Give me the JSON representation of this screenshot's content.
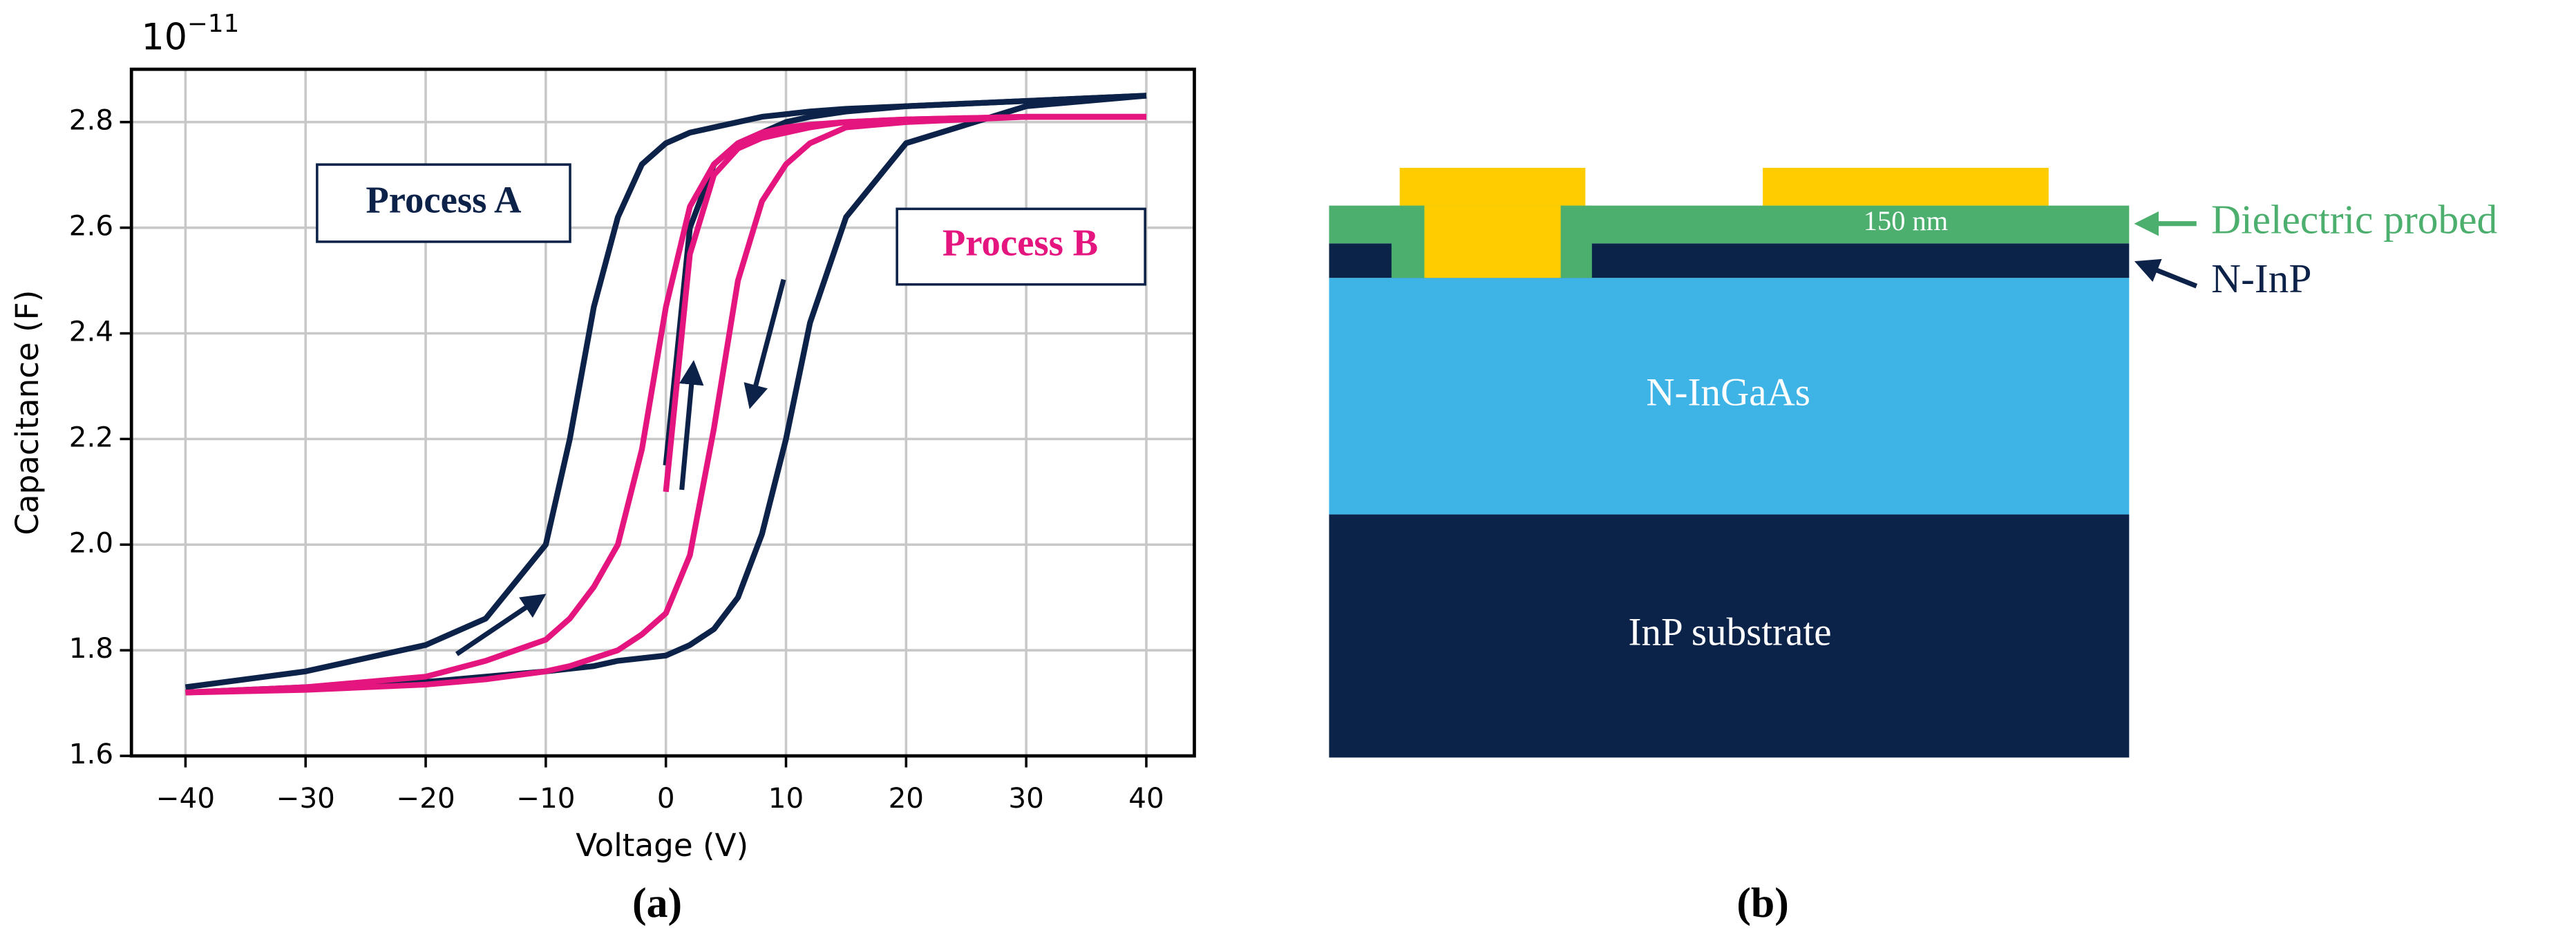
{
  "chart_data": {
    "type": "line",
    "x_label": "Voltage (V)",
    "y_label": "Capacitance (F)",
    "y_offset": {
      "base": "10",
      "exponent": "−11"
    },
    "x": [
      -40,
      -30,
      -20,
      -15,
      -10,
      -8,
      -6,
      -4,
      -2,
      0,
      2,
      4,
      6,
      8,
      10,
      12,
      15,
      20,
      30,
      40
    ],
    "xlim": [
      -44.5,
      44
    ],
    "ylim": [
      1.6,
      2.9
    ],
    "xticks": [
      {
        "value": -40,
        "label": "−40"
      },
      {
        "value": -30,
        "label": "−30"
      },
      {
        "value": -20,
        "label": "−20"
      },
      {
        "value": -10,
        "label": "−10"
      },
      0,
      10,
      20,
      30,
      40
    ],
    "yticks": [
      1.6,
      1.8,
      {
        "value": 2,
        "label": "2.0"
      },
      2.2,
      2.4,
      2.6,
      2.8
    ],
    "grid": true,
    "series": [
      {
        "name": "Process A",
        "color": "#0d2249",
        "sweeps": [
          [
            1.73,
            1.76,
            1.81,
            1.86,
            2.0,
            2.2,
            2.45,
            2.62,
            2.72,
            2.76,
            2.78,
            2.79,
            2.8,
            2.81,
            2.815,
            2.82,
            2.825,
            2.83,
            2.84,
            2.85
          ],
          [
            1.72,
            1.73,
            1.74,
            1.75,
            1.76,
            1.765,
            1.77,
            1.78,
            1.785,
            1.79,
            1.81,
            1.84,
            1.9,
            2.02,
            2.2,
            2.42,
            2.62,
            2.76,
            2.83,
            2.85
          ],
          [
            null,
            null,
            null,
            null,
            null,
            null,
            null,
            null,
            null,
            2.15,
            2.6,
            2.72,
            2.76,
            2.78,
            2.8,
            2.81,
            2.82,
            2.83,
            2.84,
            2.85
          ]
        ]
      },
      {
        "name": "Process B",
        "color": "#e5157f",
        "sweeps": [
          [
            1.72,
            1.73,
            1.75,
            1.78,
            1.82,
            1.86,
            1.92,
            2.0,
            2.18,
            2.45,
            2.64,
            2.72,
            2.76,
            2.78,
            2.79,
            2.795,
            2.8,
            2.805,
            2.81,
            2.81
          ],
          [
            1.72,
            1.725,
            1.735,
            1.745,
            1.76,
            1.77,
            1.785,
            1.8,
            1.83,
            1.87,
            1.98,
            2.22,
            2.5,
            2.65,
            2.72,
            2.76,
            2.79,
            2.8,
            2.81,
            2.81
          ],
          [
            null,
            null,
            null,
            null,
            null,
            null,
            null,
            null,
            null,
            2.1,
            2.55,
            2.7,
            2.75,
            2.77,
            2.78,
            2.79,
            2.8,
            2.805,
            2.81,
            2.81
          ]
        ]
      }
    ],
    "panel_label": "(a)"
  },
  "diagram": {
    "panel_label": "(b)",
    "thickness_label": "150 nm",
    "channel_label": "N-InGaAs",
    "substrate_label": "InP substrate",
    "dielectric_label": "Dielectric probed",
    "cap_label": "N-InP"
  }
}
